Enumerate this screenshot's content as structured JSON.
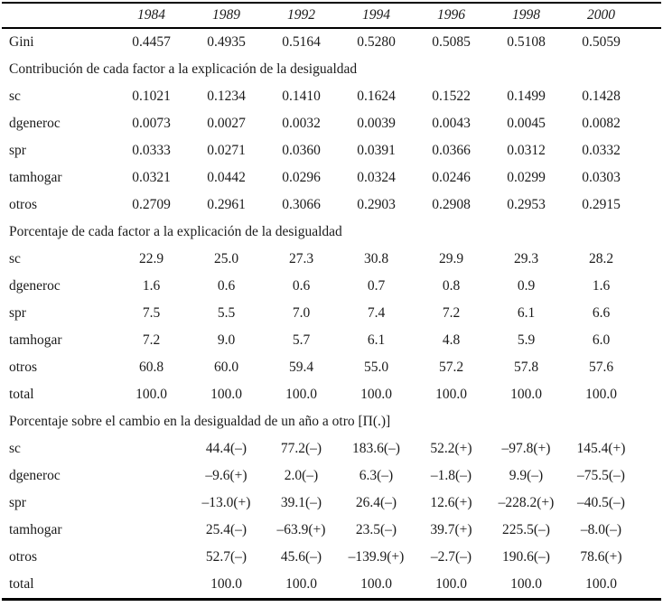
{
  "colors": {
    "text": "#1b1b1b",
    "rule": "#000000",
    "background": "#ffffff"
  },
  "table": {
    "years": [
      "1984",
      "1989",
      "1992",
      "1994",
      "1996",
      "1998",
      "2000"
    ],
    "blocks": [
      {
        "heading": null,
        "format": "dec4",
        "rows": [
          {
            "label": "Gini",
            "values": [
              "0.4457",
              "0.4935",
              "0.5164",
              "0.5280",
              "0.5085",
              "0.5108",
              "0.5059"
            ]
          }
        ]
      },
      {
        "heading": "Contribución de cada factor a la explicación de la desigualdad",
        "format": "dec4",
        "rows": [
          {
            "label": "sc",
            "values": [
              "0.1021",
              "0.1234",
              "0.1410",
              "0.1624",
              "0.1522",
              "0.1499",
              "0.1428"
            ]
          },
          {
            "label": "dgeneroc",
            "values": [
              "0.0073",
              "0.0027",
              "0.0032",
              "0.0039",
              "0.0043",
              "0.0045",
              "0.0082"
            ]
          },
          {
            "label": "spr",
            "values": [
              "0.0333",
              "0.0271",
              "0.0360",
              "0.0391",
              "0.0366",
              "0.0312",
              "0.0332"
            ]
          },
          {
            "label": "tamhogar",
            "values": [
              "0.0321",
              "0.0442",
              "0.0296",
              "0.0324",
              "0.0246",
              "0.0299",
              "0.0303"
            ]
          },
          {
            "label": "otros",
            "values": [
              "0.2709",
              "0.2961",
              "0.3066",
              "0.2903",
              "0.2908",
              "0.2953",
              "0.2915"
            ]
          }
        ]
      },
      {
        "heading": "Porcentaje de cada factor a la explicación de la desigualdad",
        "format": "dec1",
        "rows": [
          {
            "label": "sc",
            "values": [
              "22.9",
              "25.0",
              "27.3",
              "30.8",
              "29.9",
              "29.3",
              "28.2"
            ]
          },
          {
            "label": "dgeneroc",
            "values": [
              "1.6",
              "0.6",
              "0.6",
              "0.7",
              "0.8",
              "0.9",
              "1.6"
            ]
          },
          {
            "label": "spr",
            "values": [
              "7.5",
              "5.5",
              "7.0",
              "7.4",
              "7.2",
              "6.1",
              "6.6"
            ]
          },
          {
            "label": "tamhogar",
            "values": [
              "7.2",
              "9.0",
              "5.7",
              "6.1",
              "4.8",
              "5.9",
              "6.0"
            ]
          },
          {
            "label": "otros",
            "values": [
              "60.8",
              "60.0",
              "59.4",
              "55.0",
              "57.2",
              "57.8",
              "57.6"
            ]
          },
          {
            "label": "total",
            "values": [
              "100.0",
              "100.0",
              "100.0",
              "100.0",
              "100.0",
              "100.0",
              "100.0"
            ]
          }
        ]
      },
      {
        "heading": "Porcentaje sobre el cambio en la desigualdad de un año a otro [Π(.)]",
        "format": "sign",
        "rows": [
          {
            "label": "sc",
            "values": [
              "",
              "44.4(–)",
              "77.2(–)",
              "183.6(–)",
              "52.2(+)",
              "–97.8(+)",
              "145.4(+)"
            ]
          },
          {
            "label": "dgeneroc",
            "values": [
              "",
              "–9.6(+)",
              "2.0(–)",
              "6.3(–)",
              "–1.8(–)",
              "9.9(–)",
              "–75.5(–)"
            ]
          },
          {
            "label": "spr",
            "values": [
              "",
              "–13.0(+)",
              "39.1(–)",
              "26.4(–)",
              "12.6(+)",
              "–228.2(+)",
              "–40.5(–)"
            ]
          },
          {
            "label": "tamhogar",
            "values": [
              "",
              "25.4(–)",
              "–63.9(+)",
              "23.5(–)",
              "39.7(+)",
              "225.5(–)",
              "–8.0(–)"
            ]
          },
          {
            "label": "otros",
            "values": [
              "",
              "52.7(–)",
              "45.6(–)",
              "–139.9(+)",
              "–2.7(–)",
              "190.6(–)",
              "78.6(+)"
            ]
          },
          {
            "label": "total",
            "values": [
              "",
              "100.0",
              "100.0",
              "100.0",
              "100.0",
              "100.0",
              "100.0"
            ],
            "format": "dec1"
          }
        ]
      }
    ]
  }
}
